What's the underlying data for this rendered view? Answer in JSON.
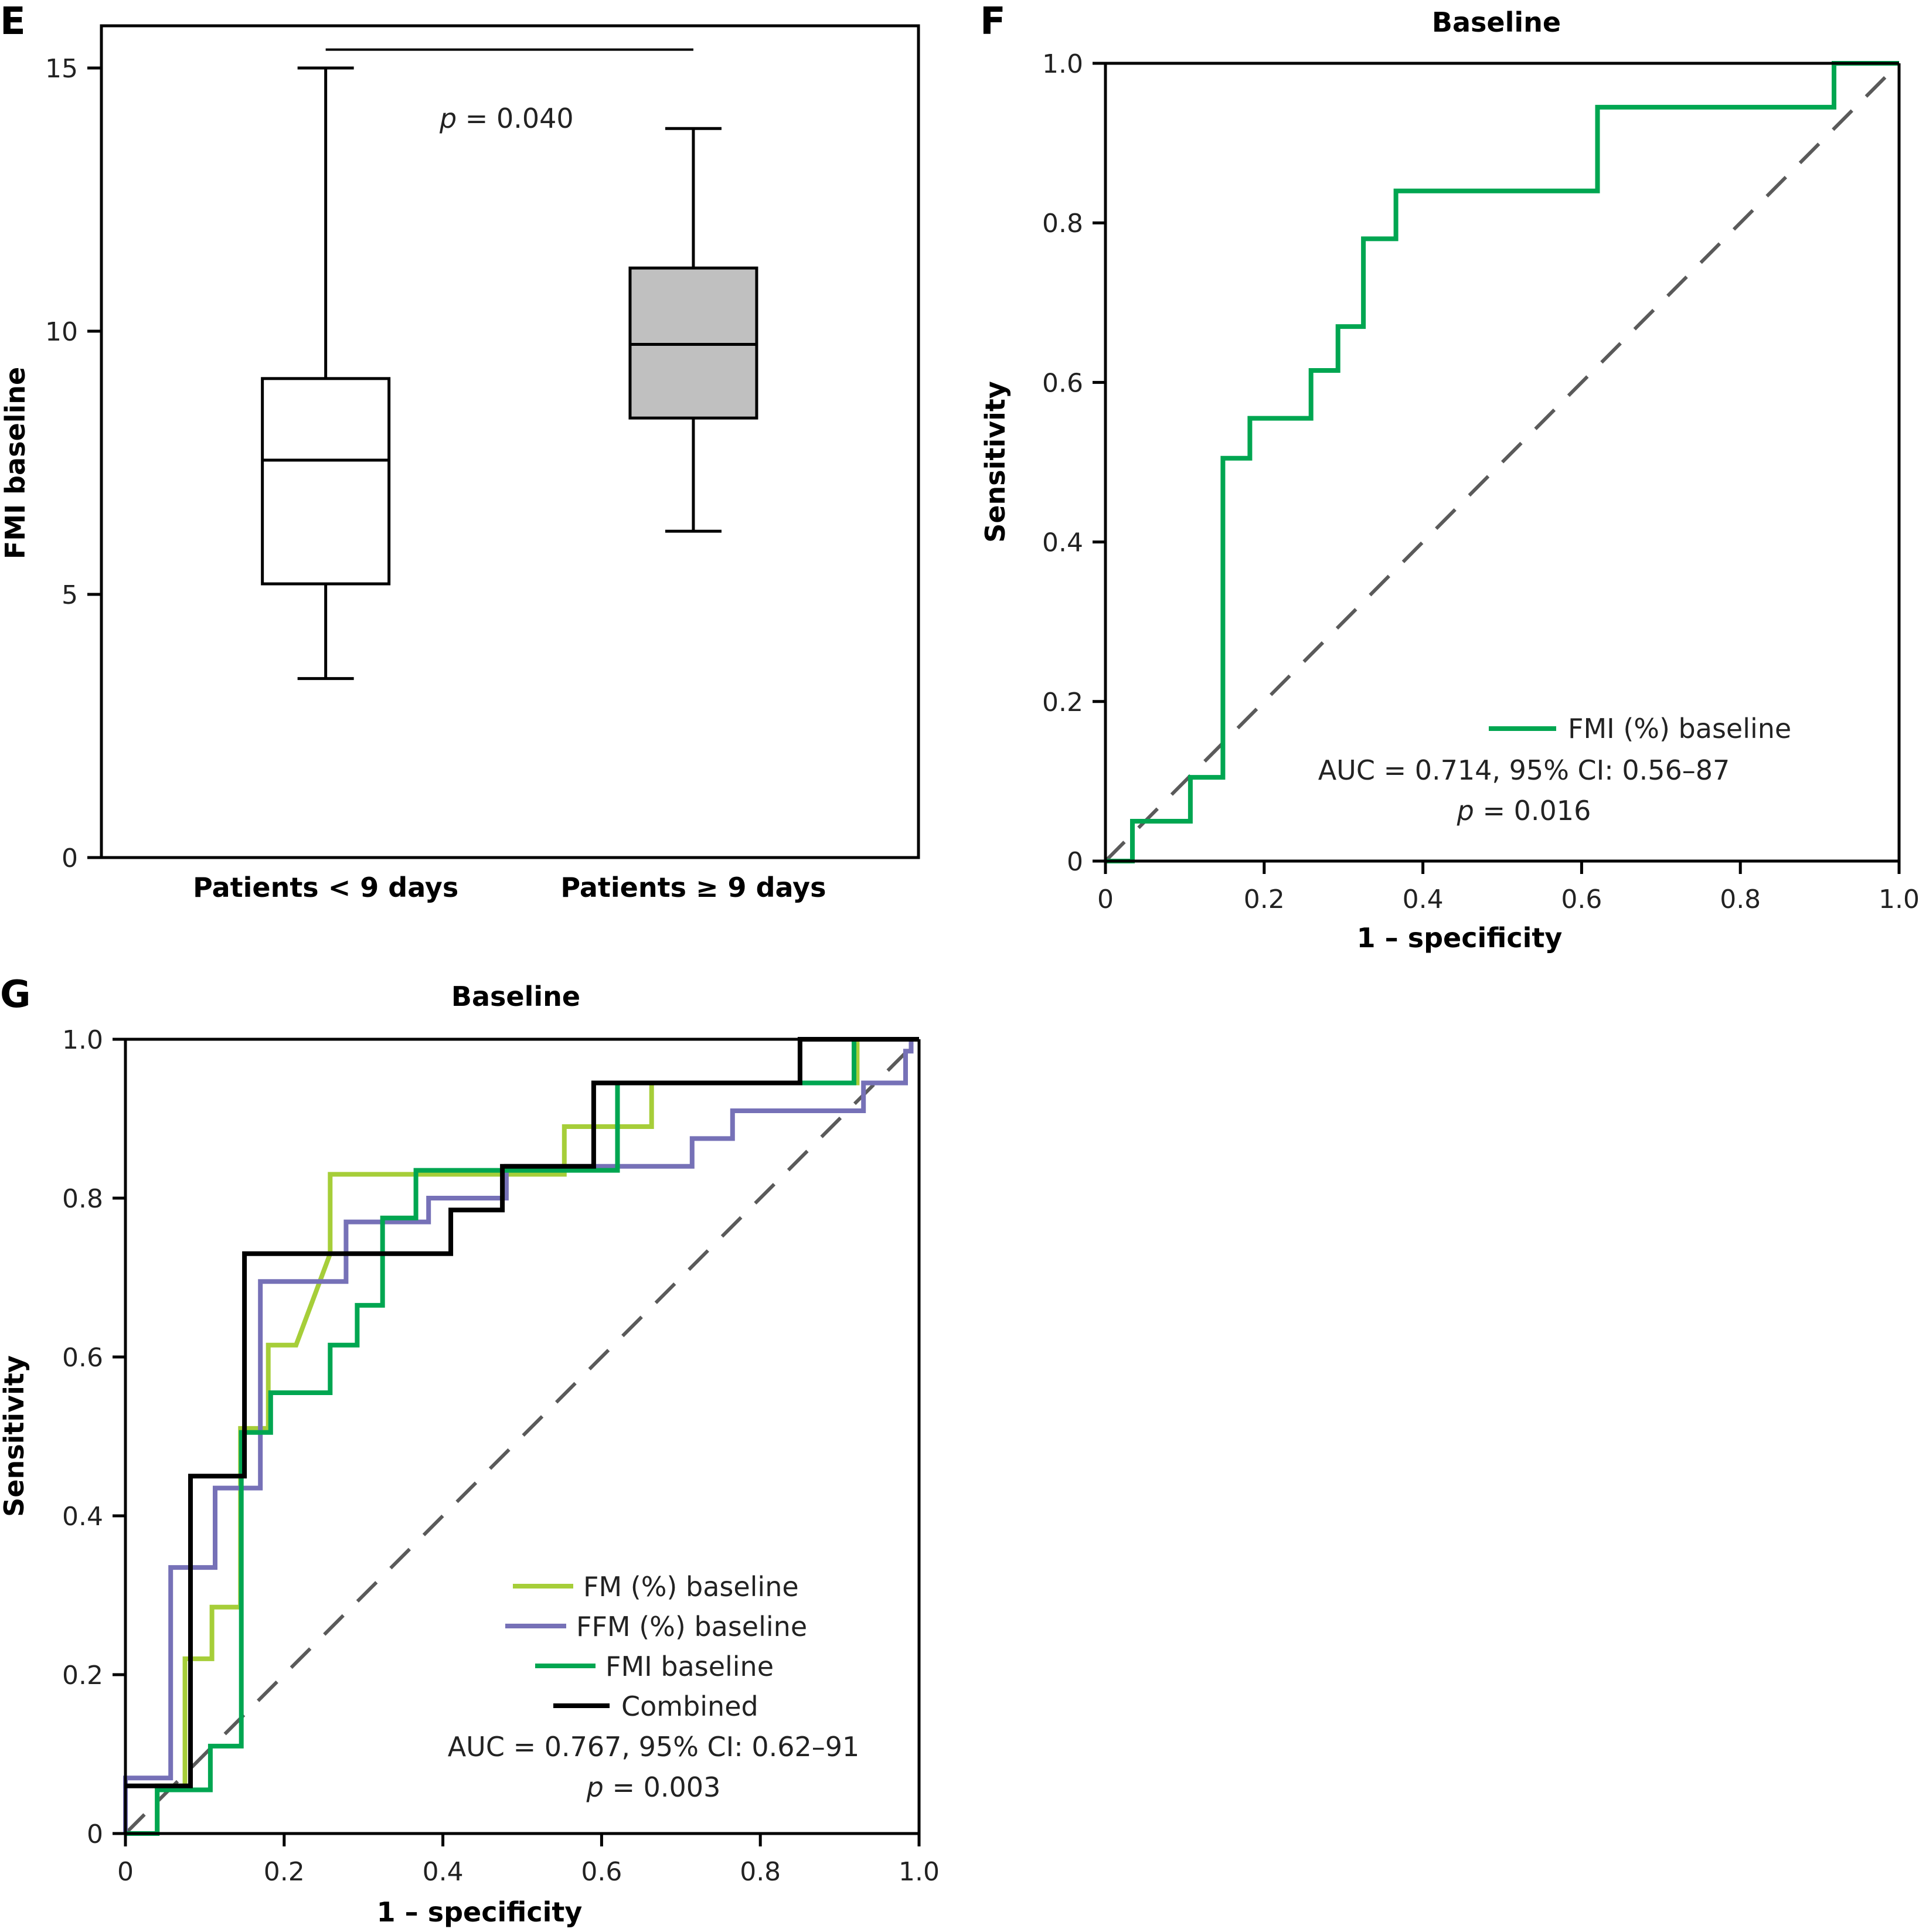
{
  "chart_data": [
    {
      "panel": "E",
      "type": "box",
      "title": "",
      "xlabel": "",
      "ylabel": "FMI baseline",
      "ylim": [
        0,
        16
      ],
      "yticks": [
        0,
        5,
        10,
        15
      ],
      "ytick_labels": [
        "0",
        "5",
        "10",
        "15"
      ],
      "categories": [
        "Patients < 9 days",
        "Patients ≥ 9 days"
      ],
      "boxes": [
        {
          "name": "Patients < 9 days",
          "whisker_low": 3.4,
          "q1": 5.2,
          "median": 7.55,
          "q3": 9.1,
          "whisker_high": 15.0,
          "fill": "#ffffff"
        },
        {
          "name": "Patients ≥ 9 days",
          "whisker_low": 6.2,
          "q1": 8.35,
          "median": 9.75,
          "q3": 11.2,
          "whisker_high": 13.85,
          "fill": "#c0c0c0"
        }
      ],
      "significance": {
        "y": 15.35,
        "label_prefix": "p",
        "label_suffix": " = 0.040",
        "label_y": 14.0
      }
    },
    {
      "panel": "F",
      "type": "line",
      "title": "Baseline",
      "xlabel": "1 – specificity",
      "ylabel": "Sensitivity",
      "xlim": [
        0,
        1
      ],
      "ylim": [
        0,
        1
      ],
      "xticks": [
        0,
        0.2,
        0.4,
        0.6,
        0.8,
        1.0
      ],
      "xtick_labels": [
        "0",
        "0.2",
        "0.4",
        "0.6",
        "0.8",
        "1.0"
      ],
      "yticks": [
        0,
        0.2,
        0.4,
        0.6,
        0.8,
        1.0
      ],
      "ytick_labels": [
        "0",
        "0.2",
        "0.4",
        "0.6",
        "0.8",
        "1.0"
      ],
      "reference_line": {
        "from": [
          0,
          0
        ],
        "to": [
          1,
          1
        ],
        "style": "dashed",
        "color": "#5a5a5a"
      },
      "series": [
        {
          "name": "FMI (%) baseline",
          "color": "#00a651",
          "x": [
            0,
            0.034,
            0.034,
            0.107,
            0.107,
            0.148,
            0.148,
            0.182,
            0.182,
            0.259,
            0.259,
            0.293,
            0.293,
            0.325,
            0.325,
            0.366,
            0.366,
            0.62,
            0.62,
            0.918,
            0.918,
            1.0
          ],
          "y": [
            0,
            0,
            0.05,
            0.05,
            0.105,
            0.105,
            0.505,
            0.505,
            0.555,
            0.555,
            0.615,
            0.615,
            0.67,
            0.67,
            0.78,
            0.78,
            0.84,
            0.84,
            0.945,
            0.945,
            1.0,
            1.0
          ]
        }
      ],
      "legend": {
        "position": "bottom-right"
      },
      "annotations": {
        "auc": "AUC = 0.714, 95% CI: 0.56–87",
        "p_prefix": "p",
        "p_suffix": " = 0.016"
      }
    },
    {
      "panel": "G",
      "type": "line",
      "title": "Baseline",
      "xlabel": "1 – specificity",
      "ylabel": "Sensitivity",
      "xlim": [
        0,
        1
      ],
      "ylim": [
        0,
        1
      ],
      "xticks": [
        0,
        0.2,
        0.4,
        0.6,
        0.8,
        1.0
      ],
      "xtick_labels": [
        "0",
        "0.2",
        "0.4",
        "0.6",
        "0.8",
        "1.0"
      ],
      "yticks": [
        0,
        0.2,
        0.4,
        0.6,
        0.8,
        1.0
      ],
      "ytick_labels": [
        "0",
        "0.2",
        "0.4",
        "0.6",
        "0.8",
        "1.0"
      ],
      "reference_line": {
        "from": [
          0,
          0
        ],
        "to": [
          1,
          1
        ],
        "style": "dashed",
        "color": "#5a5a5a"
      },
      "series": [
        {
          "name": "FM (%) baseline",
          "color": "#a6ce39",
          "x": [
            0.04,
            0.04,
            0.075,
            0.075,
            0.109,
            0.109,
            0.145,
            0.145,
            0.18,
            0.18,
            0.215,
            0.258,
            0.258,
            0.553,
            0.553,
            0.663,
            0.663,
            0.922,
            0.922,
            1.0
          ],
          "y": [
            0,
            0.06,
            0.06,
            0.22,
            0.22,
            0.285,
            0.285,
            0.51,
            0.51,
            0.615,
            0.615,
            0.73,
            0.83,
            0.83,
            0.89,
            0.89,
            0.945,
            0.945,
            1.0,
            1.0
          ]
        },
        {
          "name": "FFM (%) baseline",
          "color": "#7671b7",
          "x": [
            0,
            0,
            0.057,
            0.057,
            0.113,
            0.113,
            0.17,
            0.17,
            0.278,
            0.278,
            0.382,
            0.382,
            0.48,
            0.48,
            0.714,
            0.714,
            0.765,
            0.765,
            0.93,
            0.93,
            0.983,
            0.983,
            0.99,
            0.99,
            1.0
          ],
          "y": [
            0,
            0.07,
            0.07,
            0.335,
            0.335,
            0.435,
            0.435,
            0.695,
            0.695,
            0.77,
            0.77,
            0.8,
            0.8,
            0.84,
            0.84,
            0.875,
            0.875,
            0.91,
            0.91,
            0.945,
            0.945,
            0.985,
            0.985,
            1.0,
            1.0
          ]
        },
        {
          "name": "FMI baseline",
          "color": "#00a651",
          "x": [
            0,
            0.04,
            0.04,
            0.107,
            0.107,
            0.146,
            0.146,
            0.183,
            0.183,
            0.258,
            0.258,
            0.292,
            0.292,
            0.324,
            0.324,
            0.366,
            0.366,
            0.62,
            0.62,
            0.918,
            0.918,
            1.0
          ],
          "y": [
            0,
            0,
            0.055,
            0.055,
            0.11,
            0.11,
            0.505,
            0.505,
            0.555,
            0.555,
            0.615,
            0.615,
            0.665,
            0.665,
            0.775,
            0.775,
            0.835,
            0.835,
            0.945,
            0.945,
            1.0,
            1.0
          ]
        },
        {
          "name": "Combined",
          "color": "#000000",
          "x": [
            0,
            0.082,
            0.082,
            0.15,
            0.15,
            0.41,
            0.41,
            0.475,
            0.475,
            0.59,
            0.59,
            0.85,
            0.85,
            1.0
          ],
          "y": [
            0.06,
            0.06,
            0.45,
            0.45,
            0.73,
            0.73,
            0.785,
            0.785,
            0.84,
            0.84,
            0.945,
            0.945,
            1.0,
            1.0
          ]
        }
      ],
      "legend": {
        "position": "bottom-right"
      },
      "annotations": {
        "auc": "AUC = 0.767, 95% CI: 0.62–91",
        "p_prefix": "p",
        "p_suffix": " = 0.003"
      }
    }
  ],
  "panels": {
    "E": {
      "letter": "E"
    },
    "F": {
      "letter": "F"
    },
    "G": {
      "letter": "G"
    }
  }
}
